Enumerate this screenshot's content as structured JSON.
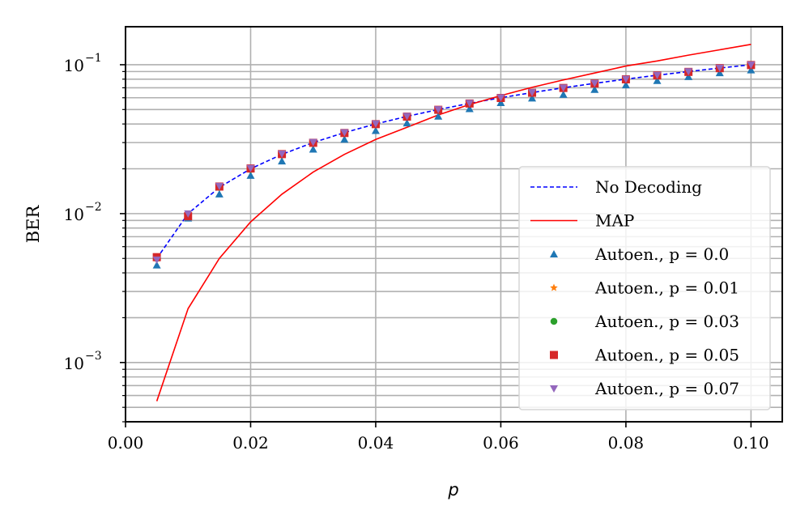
{
  "chart_data": {
    "type": "scatter",
    "xlabel": "p",
    "ylabel": "BER",
    "xlim": [
      0.0,
      0.105
    ],
    "ylim": [
      0.0004,
      0.18
    ],
    "yscale": "log",
    "grid": true,
    "legend_position": "lower-right",
    "x_ticks": [
      "0.00",
      "0.02",
      "0.04",
      "0.06",
      "0.08",
      "0.10"
    ],
    "y_ticks": [
      {
        "base": "10",
        "exp": "−3",
        "value": 0.001
      },
      {
        "base": "10",
        "exp": "−2",
        "value": 0.01
      },
      {
        "base": "10",
        "exp": "−1",
        "value": 0.1
      }
    ],
    "x": [
      0.005,
      0.01,
      0.015,
      0.02,
      0.025,
      0.03,
      0.035,
      0.04,
      0.045,
      0.05,
      0.055,
      0.06,
      0.065,
      0.07,
      0.075,
      0.08,
      0.085,
      0.09,
      0.095,
      0.1
    ],
    "series": [
      {
        "name": "No Decoding",
        "kind": "line",
        "style": "dashed",
        "color": "#0000ff",
        "values": [
          0.005,
          0.01,
          0.015,
          0.02,
          0.025,
          0.03,
          0.035,
          0.04,
          0.045,
          0.05,
          0.055,
          0.06,
          0.065,
          0.07,
          0.075,
          0.08,
          0.085,
          0.09,
          0.095,
          0.1
        ]
      },
      {
        "name": "MAP",
        "kind": "line",
        "style": "solid",
        "color": "#ff0000",
        "values": [
          0.00055,
          0.0023,
          0.005,
          0.0088,
          0.0135,
          0.019,
          0.025,
          0.0315,
          0.038,
          0.046,
          0.054,
          0.062,
          0.0705,
          0.079,
          0.088,
          0.098,
          0.106,
          0.116,
          0.126,
          0.137
        ]
      },
      {
        "name": "Autoen., p = 0.0",
        "kind": "marker",
        "marker": "triangle-up",
        "color": "#1f77b4",
        "values": [
          0.0045,
          0.0093,
          0.0135,
          0.018,
          0.0225,
          0.027,
          0.0315,
          0.036,
          0.0405,
          0.045,
          0.0505,
          0.0555,
          0.0595,
          0.063,
          0.068,
          0.073,
          0.078,
          0.083,
          0.088,
          0.092
        ]
      },
      {
        "name": "Autoen., p = 0.01",
        "kind": "marker",
        "marker": "star",
        "color": "#ff7f0e",
        "values": [
          0.005,
          0.0098,
          0.015,
          0.0198,
          0.0248,
          0.0298,
          0.0345,
          0.0398,
          0.0445,
          0.0495,
          0.0548,
          0.0595,
          0.0645,
          0.0695,
          0.0745,
          0.0795,
          0.0845,
          0.089,
          0.0945,
          0.099
        ]
      },
      {
        "name": "Autoen., p = 0.03",
        "kind": "marker",
        "marker": "circle",
        "color": "#2ca02c",
        "values": [
          0.005,
          0.0098,
          0.015,
          0.0198,
          0.0248,
          0.0298,
          0.0345,
          0.0398,
          0.0445,
          0.0495,
          0.0548,
          0.0595,
          0.0645,
          0.0695,
          0.0745,
          0.0795,
          0.0845,
          0.089,
          0.0945,
          0.099
        ]
      },
      {
        "name": "Autoen., p = 0.05",
        "kind": "marker",
        "marker": "square",
        "color": "#d62728",
        "values": [
          0.0051,
          0.0096,
          0.0152,
          0.0201,
          0.0251,
          0.0299,
          0.0348,
          0.0399,
          0.0448,
          0.0498,
          0.0549,
          0.0598,
          0.0648,
          0.0698,
          0.0748,
          0.0798,
          0.0848,
          0.0895,
          0.0948,
          0.0995
        ]
      },
      {
        "name": "Autoen., p = 0.07",
        "kind": "marker",
        "marker": "triangle-down",
        "color": "#9467bd",
        "values": [
          0.0049,
          0.01,
          0.0153,
          0.0202,
          0.0252,
          0.0302,
          0.0351,
          0.0402,
          0.0451,
          0.0501,
          0.0552,
          0.0602,
          0.0652,
          0.0701,
          0.0752,
          0.0802,
          0.0852,
          0.0902,
          0.0952,
          0.1
        ]
      }
    ]
  }
}
